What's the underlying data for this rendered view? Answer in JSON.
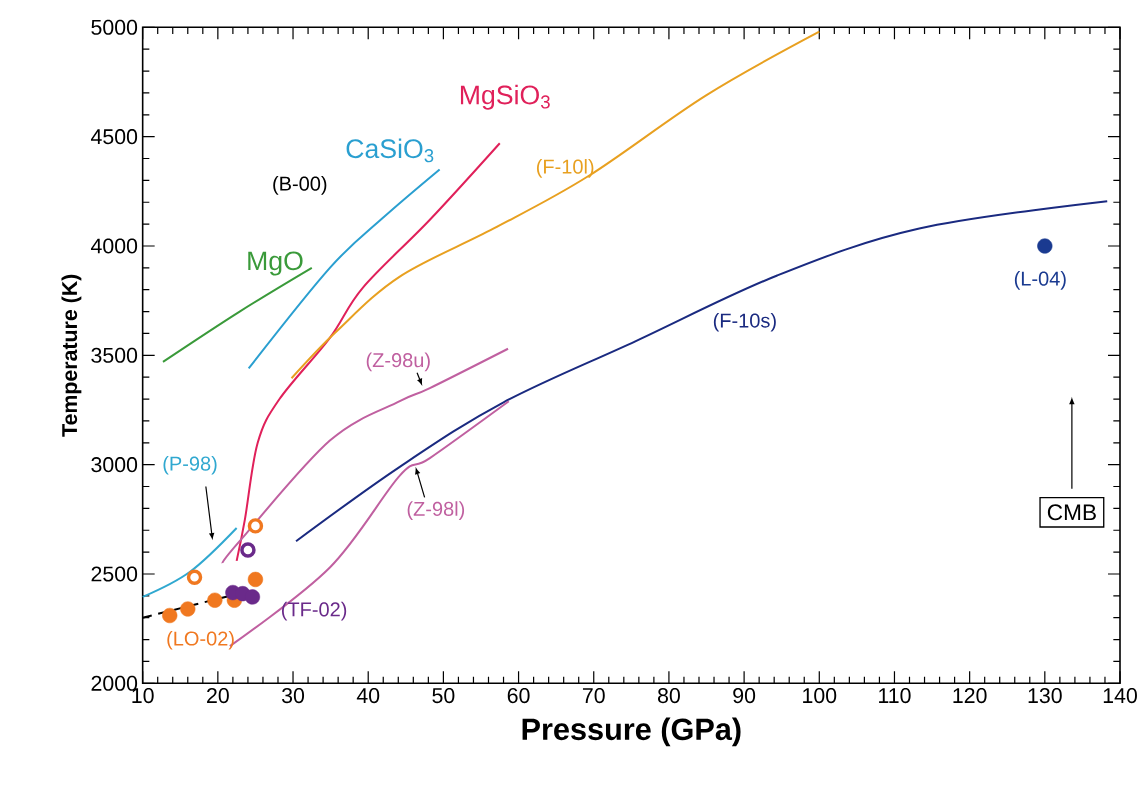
{
  "chart_data": {
    "type": "line",
    "xlabel": "Pressure (GPa)",
    "ylabel": "Temperature (K)",
    "xlim": [
      10,
      140
    ],
    "ylim": [
      2000,
      5000
    ],
    "xticks": [
      10,
      20,
      30,
      40,
      50,
      60,
      70,
      80,
      90,
      100,
      110,
      120,
      130,
      140
    ],
    "yticks": [
      2000,
      2500,
      3000,
      3500,
      4000,
      4500,
      5000
    ],
    "grid": false,
    "legend": false,
    "marker": "none",
    "annotations": [
      "(B-00)",
      "CMB"
    ],
    "series": [
      {
        "name": "MgO",
        "color": "#3a9a3a",
        "x": [
          12.7,
          22.9,
          32.5
        ],
        "values": [
          3470,
          3700,
          3900
        ]
      },
      {
        "name": "CaSiO$_{3}$",
        "color": "#2a9fd0",
        "x": [
          24.1,
          34.9,
          42,
          49.5
        ],
        "values": [
          3440,
          3900,
          4130,
          4350
        ]
      },
      {
        "name": "MgSiO$_{3}$",
        "color": "#e0205a",
        "x": [
          22.5,
          23.6,
          25.3,
          28.2,
          34.9,
          39.3,
          48.2,
          57.5
        ],
        "values": [
          2560,
          2750,
          3100,
          3300,
          3580,
          3810,
          4120,
          4470
        ]
      },
      {
        "name": "(F-10l)",
        "color": "#e8a020",
        "x": [
          29.8,
          35.8,
          44.2,
          56.7,
          69.3,
          85,
          100
        ],
        "values": [
          3395,
          3610,
          3860,
          4080,
          4320,
          4690,
          4980
        ]
      },
      {
        "name": "(F-10s)",
        "color": "#1a2a80",
        "x": [
          30.4,
          44.2,
          58,
          75.6,
          94.4,
          113.3,
          138.3
        ],
        "values": [
          2650,
          2990,
          3285,
          3565,
          3865,
          4080,
          4205
        ]
      },
      {
        "name": "(Z-98u)",
        "color": "#c060a0",
        "x": [
          20.6,
          22.9,
          34.9,
          44.2,
          48.2,
          58.6
        ],
        "values": [
          2550,
          2650,
          3110,
          3290,
          3350,
          3530
        ]
      },
      {
        "name": "(Z-98l)",
        "color": "#c060a0",
        "x": [
          21.6,
          34.9,
          44.2,
          48.2,
          58.7
        ],
        "values": [
          2170,
          2530,
          2950,
          3030,
          3290
        ]
      },
      {
        "name": "(P-98)",
        "color": "#30a8d0",
        "x": [
          10,
          16.3,
          22.5
        ],
        "values": [
          2395,
          2510,
          2710
        ]
      },
      {
        "color": "#000000",
        "line_style": "dashed",
        "x": [
          10,
          23.3
        ],
        "values": [
          2300,
          2415
        ]
      },
      {
        "name": "(LO-02)",
        "type": "scatter",
        "marker": "circle",
        "color": "#f07820",
        "x": [
          13.6,
          16,
          19.6,
          22.2,
          25
        ],
        "values": [
          2310,
          2340,
          2380,
          2380,
          2475
        ]
      },
      {
        "type": "scatter",
        "marker": "circle",
        "color": "#f07820",
        "x": [
          16.9,
          25
        ],
        "values": [
          2485,
          2720
        ]
      },
      {
        "name": "(TF-02)",
        "type": "scatter",
        "marker": "circle",
        "color": "#6a2a8a",
        "x": [
          22,
          23.3,
          24.6
        ],
        "values": [
          2415,
          2410,
          2395
        ]
      },
      {
        "type": "scatter",
        "marker": "circle",
        "color": "#6a2a8a",
        "x": [
          24
        ],
        "values": [
          2610
        ]
      },
      {
        "name": "(L-04)",
        "type": "scatter",
        "marker": "circle",
        "color": "#1a3a90",
        "x": [
          130
        ],
        "values": [
          4000
        ]
      }
    ]
  }
}
